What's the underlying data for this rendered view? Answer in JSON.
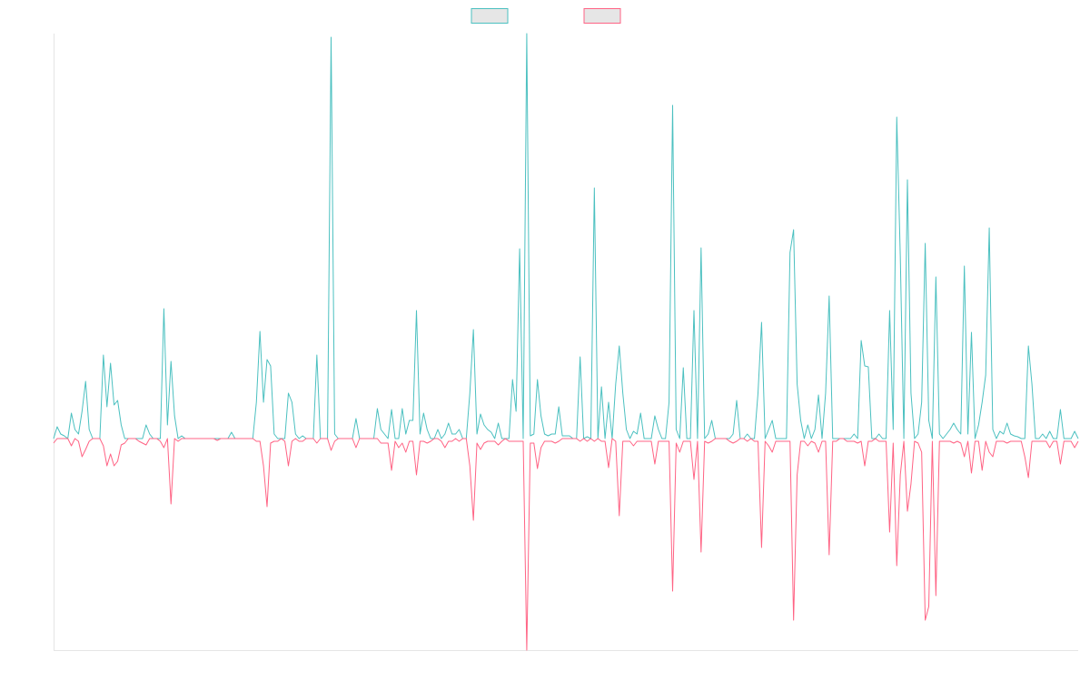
{
  "chart_data": {
    "type": "line",
    "legend": "top",
    "ylim": [
      -233,
      446
    ],
    "series": [
      {
        "color": "#4bc0c0",
        "values": [
          0,
          13,
          5,
          3,
          0,
          28,
          10,
          5,
          30,
          63,
          10,
          0,
          0,
          0,
          92,
          35,
          83,
          37,
          42,
          15,
          0,
          0,
          0,
          0,
          0,
          0,
          15,
          5,
          0,
          0,
          0,
          143,
          15,
          85,
          25,
          0,
          3,
          0,
          0,
          0,
          0,
          0,
          0,
          0,
          0,
          0,
          0,
          0,
          0,
          0,
          7,
          0,
          0,
          0,
          0,
          0,
          0,
          40,
          118,
          40,
          87,
          80,
          5,
          0,
          0,
          0,
          50,
          40,
          5,
          0,
          3,
          0,
          0,
          0,
          92,
          0,
          0,
          0,
          442,
          5,
          0,
          0,
          0,
          0,
          0,
          22,
          0,
          0,
          0,
          0,
          0,
          33,
          10,
          5,
          0,
          32,
          0,
          0,
          33,
          5,
          20,
          20,
          141,
          5,
          28,
          10,
          0,
          0,
          10,
          0,
          5,
          17,
          5,
          5,
          10,
          0,
          0,
          50,
          120,
          5,
          27,
          15,
          10,
          7,
          0,
          17,
          0,
          0,
          0,
          65,
          30,
          209,
          0,
          446,
          3,
          5,
          65,
          25,
          5,
          3,
          5,
          5,
          35,
          3,
          3,
          3,
          0,
          0,
          90,
          0,
          2,
          0,
          276,
          0,
          57,
          0,
          40,
          0,
          60,
          102,
          50,
          10,
          0,
          8,
          5,
          28,
          0,
          0,
          0,
          25,
          10,
          0,
          0,
          40,
          367,
          10,
          0,
          78,
          0,
          0,
          141,
          0,
          210,
          0,
          5,
          20,
          0,
          0,
          0,
          0,
          0,
          5,
          42,
          0,
          0,
          5,
          0,
          0,
          50,
          128,
          0,
          10,
          20,
          0,
          0,
          0,
          0,
          205,
          230,
          60,
          20,
          0,
          15,
          0,
          10,
          48,
          0,
          50,
          157,
          0,
          0,
          0,
          0,
          0,
          0,
          5,
          0,
          108,
          80,
          79,
          0,
          0,
          5,
          0,
          0,
          141,
          10,
          354,
          200,
          0,
          285,
          50,
          0,
          5,
          40,
          215,
          20,
          0,
          178,
          5,
          0,
          5,
          10,
          17,
          10,
          5,
          190,
          5,
          117,
          0,
          15,
          40,
          70,
          232,
          10,
          0,
          8,
          5,
          17,
          5,
          3,
          2,
          0,
          0,
          102,
          60,
          0,
          0,
          5,
          0,
          8,
          0,
          0,
          32,
          0,
          0,
          0,
          8,
          0
        ]
      },
      {
        "color": "#ff6384",
        "values": [
          -5,
          0,
          0,
          0,
          0,
          -8,
          0,
          -3,
          -20,
          -12,
          -3,
          0,
          0,
          0,
          -8,
          -30,
          -17,
          -30,
          -25,
          -7,
          -5,
          0,
          0,
          0,
          -3,
          -5,
          -7,
          0,
          0,
          0,
          -3,
          -10,
          0,
          -72,
          0,
          -3,
          0,
          0,
          0,
          0,
          0,
          0,
          0,
          0,
          0,
          0,
          -2,
          0,
          0,
          0,
          0,
          0,
          0,
          0,
          0,
          0,
          0,
          -3,
          -3,
          -30,
          -75,
          -5,
          -3,
          -3,
          0,
          -3,
          -30,
          -3,
          0,
          -3,
          -3,
          0,
          0,
          0,
          -5,
          0,
          0,
          0,
          -13,
          -3,
          0,
          0,
          0,
          0,
          0,
          -10,
          0,
          0,
          0,
          0,
          0,
          0,
          -5,
          -5,
          -5,
          -35,
          -3,
          -10,
          -5,
          -15,
          -3,
          -3,
          -40,
          -3,
          -3,
          -5,
          -3,
          0,
          0,
          -3,
          -10,
          -3,
          -3,
          0,
          -3,
          0,
          0,
          -30,
          -90,
          -5,
          -12,
          -5,
          -3,
          -3,
          -3,
          -7,
          -3,
          0,
          -3,
          -3,
          -3,
          -3,
          -3,
          -233,
          -5,
          -5,
          -33,
          -10,
          -3,
          -3,
          -3,
          -5,
          -3,
          0,
          0,
          0,
          0,
          0,
          -3,
          0,
          -3,
          0,
          -3,
          0,
          -3,
          -3,
          -32,
          0,
          -3,
          -85,
          -3,
          -3,
          -3,
          -8,
          -3,
          -3,
          -3,
          -3,
          -3,
          -28,
          -3,
          -3,
          -3,
          -3,
          -168,
          -5,
          -15,
          -3,
          -3,
          -3,
          -45,
          -3,
          -125,
          -3,
          -5,
          -3,
          0,
          0,
          0,
          0,
          -3,
          -5,
          -3,
          0,
          0,
          -3,
          0,
          -3,
          -3,
          -120,
          -3,
          -8,
          -15,
          -3,
          -3,
          -3,
          -3,
          -3,
          -200,
          -40,
          -3,
          -3,
          -8,
          -3,
          -5,
          -15,
          -3,
          -3,
          -128,
          -3,
          -3,
          0,
          0,
          -3,
          -3,
          -3,
          -5,
          -3,
          -30,
          -3,
          -3,
          0,
          -3,
          -3,
          -3,
          -103,
          -5,
          -140,
          -40,
          -3,
          -80,
          -50,
          -3,
          -5,
          -15,
          -200,
          -185,
          -3,
          -173,
          -3,
          -3,
          -3,
          -3,
          -5,
          -3,
          -5,
          -20,
          -3,
          -38,
          -3,
          -3,
          -35,
          -3,
          -15,
          -20,
          -3,
          -3,
          -3,
          -5,
          -3,
          -3,
          -3,
          -3,
          -20,
          -43,
          -3,
          -3,
          -3,
          -3,
          -3,
          -10,
          -3,
          -3,
          -28,
          -3,
          -3,
          -3,
          -10,
          -3
        ]
      }
    ]
  }
}
